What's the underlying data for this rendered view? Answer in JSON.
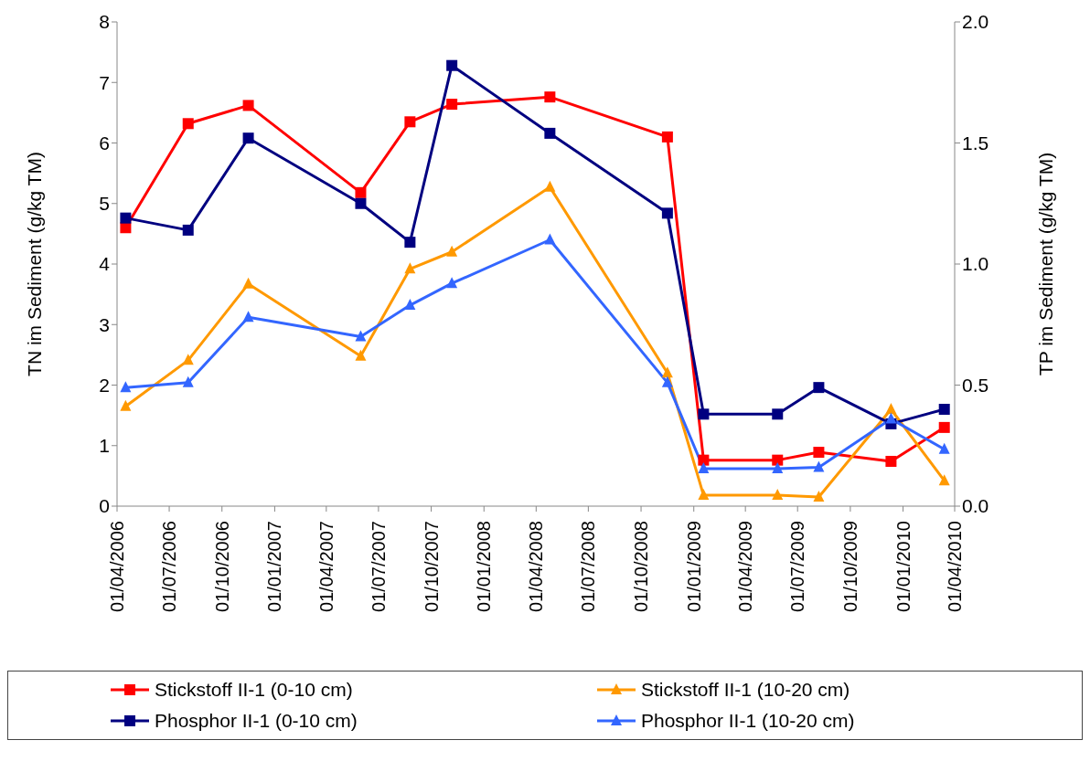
{
  "chart_data": {
    "type": "line",
    "xlabel": null,
    "ylabel": "TN im Sediment (g/kg TM)",
    "y2label": "TP im Sediment (g/kg TM)",
    "x": [
      "2006-04-16",
      "2006-08-03",
      "2006-11-16",
      "2007-05-31",
      "2007-08-25",
      "2007-11-06",
      "2008-04-25",
      "2008-11-16",
      "2009-01-18",
      "2009-05-27",
      "2009-08-07",
      "2009-12-11",
      "2010-03-14"
    ],
    "series": [
      {
        "name": "Stickstoff II-1 (0-10 cm)",
        "color": "#ff0000",
        "marker": "square",
        "values": [
          4.6,
          6.32,
          6.62,
          5.18,
          6.35,
          6.64,
          6.76,
          6.1,
          0.76,
          0.76,
          0.89,
          0.74,
          1.3
        ]
      },
      {
        "name": "Stickstoff II-1 (10-20 cm)",
        "color": "#ff9900",
        "marker": "triangle",
        "values": [
          1.65,
          2.41,
          3.67,
          2.48,
          3.92,
          4.2,
          5.27,
          2.2,
          0.18,
          0.18,
          0.15,
          1.6,
          0.42
        ]
      },
      {
        "name": "Phosphor II-1 (0-10 cm)",
        "color": "#000080",
        "marker": "square",
        "axis": "y2",
        "values": [
          1.19,
          1.14,
          1.52,
          1.25,
          1.09,
          1.82,
          1.54,
          1.21,
          0.38,
          0.38,
          0.49,
          0.34,
          0.4
        ]
      },
      {
        "name": "Phosphor II-1 (10-20 cm)",
        "color": "#3366ff",
        "marker": "triangle",
        "axis": "y2",
        "values": [
          0.49,
          0.51,
          0.78,
          0.7,
          0.83,
          0.92,
          1.1,
          0.51,
          0.155,
          0.155,
          0.16,
          0.36,
          0.235
        ]
      }
    ],
    "xlim": [
      "2006-04-01",
      "2010-04-01"
    ],
    "xticks": [
      {
        "value": "2006-04-01",
        "label": "01/04/2006"
      },
      {
        "value": "2006-07-01",
        "label": "01/07/2006"
      },
      {
        "value": "2006-10-01",
        "label": "01/10/2006"
      },
      {
        "value": "2007-01-01",
        "label": "01/01/2007"
      },
      {
        "value": "2007-04-01",
        "label": "01/04/2007"
      },
      {
        "value": "2007-07-01",
        "label": "01/07/2007"
      },
      {
        "value": "2007-10-01",
        "label": "01/10/2007"
      },
      {
        "value": "2008-01-01",
        "label": "01/01/2008"
      },
      {
        "value": "2008-04-01",
        "label": "01/04/2008"
      },
      {
        "value": "2008-07-01",
        "label": "01/07/2008"
      },
      {
        "value": "2008-10-01",
        "label": "01/10/2008"
      },
      {
        "value": "2009-01-01",
        "label": "01/01/2009"
      },
      {
        "value": "2009-04-01",
        "label": "01/04/2009"
      },
      {
        "value": "2009-07-01",
        "label": "01/07/2009"
      },
      {
        "value": "2009-10-01",
        "label": "01/10/2009"
      },
      {
        "value": "2010-01-01",
        "label": "01/01/2010"
      },
      {
        "value": "2010-04-01",
        "label": "01/04/2010"
      }
    ],
    "ylim": [
      0,
      8
    ],
    "yticks": [
      0,
      1,
      2,
      3,
      4,
      5,
      6,
      7,
      8
    ],
    "y2lim": [
      0,
      2
    ],
    "y2ticks": [
      {
        "value": 0,
        "label": "0.0"
      },
      {
        "value": 0.5,
        "label": "0.5"
      },
      {
        "value": 1,
        "label": "1.0"
      },
      {
        "value": 1.5,
        "label": "1.5"
      },
      {
        "value": 2,
        "label": "2.0"
      }
    ],
    "grid": false,
    "legend": "bottom",
    "line_style": "solid"
  }
}
